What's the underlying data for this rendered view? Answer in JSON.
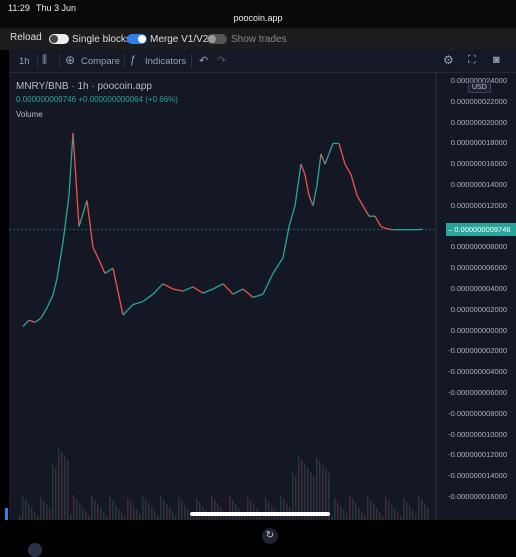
{
  "status": {
    "time": "11:29",
    "date": "Thu 3 Jun",
    "url": "poocoin.app"
  },
  "toolbar": {
    "reload": "Reload",
    "single_blocks": "Single blocks",
    "merge": "Merge V1/V2",
    "show_trades": "Show trades"
  },
  "chart_toolbar": {
    "interval": "1h",
    "compare": "Compare",
    "indicators": "Indicators"
  },
  "legend": {
    "symbol": "MNRY/BNB · 1h · poocoin.app",
    "ohlc": "0.000000009746 +0.000000000064 (+0.66%)",
    "volume_label": "Volume"
  },
  "currency": "USD",
  "last_price": "0.000000009746",
  "colors": {
    "up": "#26a69a",
    "down": "#ef5350",
    "bg": "#141825"
  },
  "chart_data": {
    "type": "line",
    "title": "MNRY/BNB · 1h · poocoin.app",
    "x_index": [
      0,
      6,
      12,
      18,
      24,
      30,
      34,
      40,
      46,
      50,
      56,
      64,
      70,
      76,
      82,
      90,
      100,
      110,
      120,
      130,
      140,
      150,
      160,
      170,
      180,
      190,
      200,
      210,
      220,
      230,
      240,
      250,
      260,
      266,
      272,
      278,
      282,
      286,
      290,
      294,
      298,
      302,
      306,
      310,
      316,
      322,
      328,
      334,
      340,
      346,
      352,
      358,
      364,
      370,
      376,
      382,
      388,
      394,
      400
    ],
    "y": [
      4e-10,
      1e-09,
      8e-10,
      1.2e-09,
      2.2e-09,
      3.4e-09,
      5e-09,
      8.5e-09,
      1.3e-08,
      1.9e-08,
      1e-08,
      1.25e-08,
      8e-09,
      6.8e-09,
      5.5e-09,
      6e-09,
      1.5e-09,
      2.5e-09,
      2.8e-09,
      3.5e-09,
      4.5e-09,
      4e-09,
      3.8e-09,
      4.2e-09,
      3.6e-09,
      4e-09,
      4.5e-09,
      3.5e-09,
      4e-09,
      3.2e-09,
      3.5e-09,
      5.5e-09,
      7e-09,
      1e-08,
      1.2e-08,
      1.6e-08,
      1.5e-08,
      1.3e-08,
      1.2e-08,
      1.4e-08,
      1.7e-08,
      1.6e-08,
      1.7e-08,
      1.8e-08,
      1.8e-08,
      1.6e-08,
      1.5e-08,
      1.3e-08,
      1.2e-08,
      1.1e-08,
      1.1e-08,
      1e-08,
      9.8e-09,
      9.7e-09,
      9.7e-09,
      9.7e-09,
      9.7e-09,
      9.7e-09,
      9.746e-09
    ],
    "ylim": [
      -1.6e-08,
      2.4e-08
    ],
    "y_ticks": [
      "0.000000024000",
      "0.000000022000",
      "0.000000020000",
      "0.000000018000",
      "0.000000016000",
      "0.000000014000",
      "0.000000012000",
      "0.000000010000",
      "0.000000008000",
      "0.000000006000",
      "0.000000004000",
      "0.000000002000",
      "0.000000000000",
      "-0.000000002000",
      "-0.000000004000",
      "-0.000000006000",
      "-0.000000008000",
      "-0.000000010000",
      "-0.000000012000",
      "-0.000000014000",
      "-0.000000016000"
    ],
    "y_tick_values": [
      2.4e-08,
      2.2e-08,
      2e-08,
      1.8e-08,
      1.6e-08,
      1.4e-08,
      1.2e-08,
      1e-08,
      8e-09,
      6e-09,
      4e-09,
      2e-09,
      0,
      -2e-09,
      -4e-09,
      -6e-09,
      -8e-09,
      -1e-08,
      -1.2e-08,
      -1.4e-08,
      -1.6e-08
    ],
    "grid": true,
    "legend": "top-left"
  }
}
